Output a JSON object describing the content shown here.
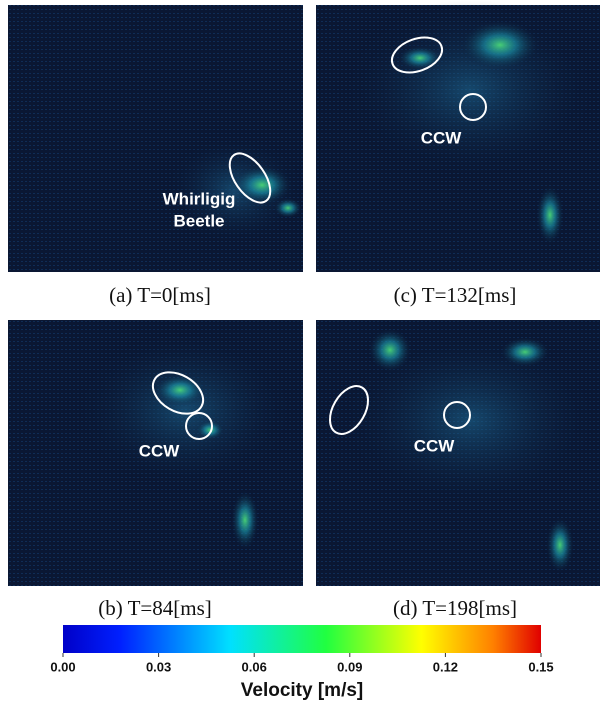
{
  "panels": [
    {
      "caption": "(a) T=0[ms]",
      "annotation": [
        "Whirligig",
        "Beetle"
      ]
    },
    {
      "caption": "(c) T=132[ms]",
      "annotation": [
        "CCW"
      ]
    },
    {
      "caption": "(b) T=84[ms]",
      "annotation": [
        "CCW"
      ]
    },
    {
      "caption": "(d) T=198[ms]",
      "annotation": [
        "CCW"
      ]
    }
  ],
  "colorbar": {
    "label": "Velocity [m/s]",
    "lim": [
      0,
      0.15
    ],
    "ticks": [
      {
        "value": 0,
        "label": "0.00"
      },
      {
        "value": 0.03,
        "label": "0.03"
      },
      {
        "value": 0.06,
        "label": "0.06"
      },
      {
        "value": 0.09,
        "label": "0.09"
      },
      {
        "value": 0.12,
        "label": "0.12"
      },
      {
        "value": 0.15,
        "label": "0.15"
      }
    ]
  }
}
